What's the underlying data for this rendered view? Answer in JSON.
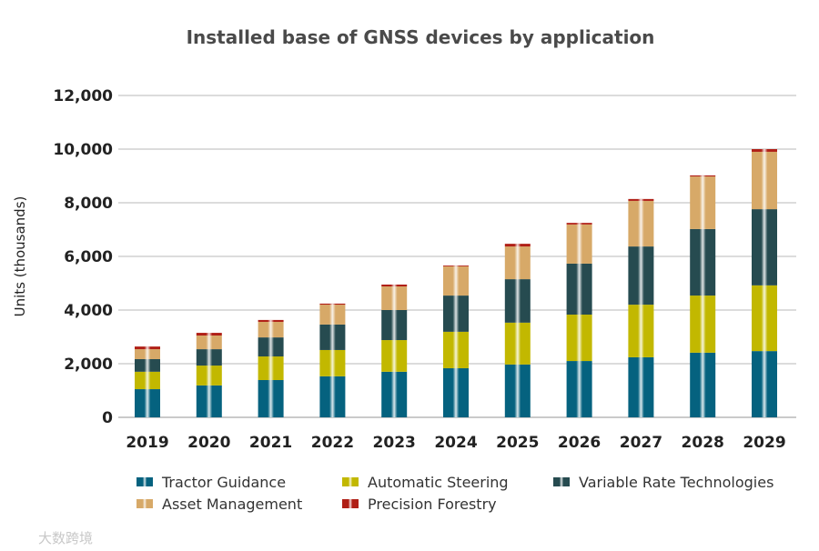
{
  "chart_data": {
    "type": "bar",
    "stacked": true,
    "title": "Installed base of GNSS devices by application",
    "xlabel": "",
    "ylabel": "Units (thousands)",
    "ylim": [
      0,
      12000
    ],
    "yticks": [
      0,
      2000,
      4000,
      6000,
      8000,
      10000,
      12000
    ],
    "ytick_labels": [
      "0",
      "2,000",
      "4,000",
      "6,000",
      "8,000",
      "10,000",
      "12,000"
    ],
    "grid": true,
    "legend_position": "bottom",
    "categories": [
      "2019",
      "2020",
      "2021",
      "2022",
      "2023",
      "2024",
      "2025",
      "2026",
      "2027",
      "2028",
      "2029"
    ],
    "series": [
      {
        "name": "Tractor Guidance",
        "color": "#05627f",
        "values": [
          1050,
          1190,
          1390,
          1530,
          1700,
          1830,
          1970,
          2100,
          2240,
          2410,
          2470
        ]
      },
      {
        "name": "Automatic Steering",
        "color": "#c2b800",
        "values": [
          650,
          740,
          880,
          980,
          1180,
          1360,
          1560,
          1730,
          1960,
          2130,
          2450
        ]
      },
      {
        "name": "Variable Rate Technologies",
        "color": "#264b50",
        "values": [
          470,
          610,
          710,
          950,
          1120,
          1350,
          1620,
          1900,
          2170,
          2480,
          2840
        ]
      },
      {
        "name": "Asset Management",
        "color": "#d7a968",
        "values": [
          370,
          510,
          580,
          740,
          880,
          1090,
          1220,
          1460,
          1700,
          1960,
          2140
        ]
      },
      {
        "name": "Precision Forestry",
        "color": "#b01f16",
        "values": [
          100,
          100,
          70,
          40,
          70,
          30,
          100,
          60,
          70,
          40,
          100
        ]
      }
    ]
  },
  "watermark": "大数跨境"
}
